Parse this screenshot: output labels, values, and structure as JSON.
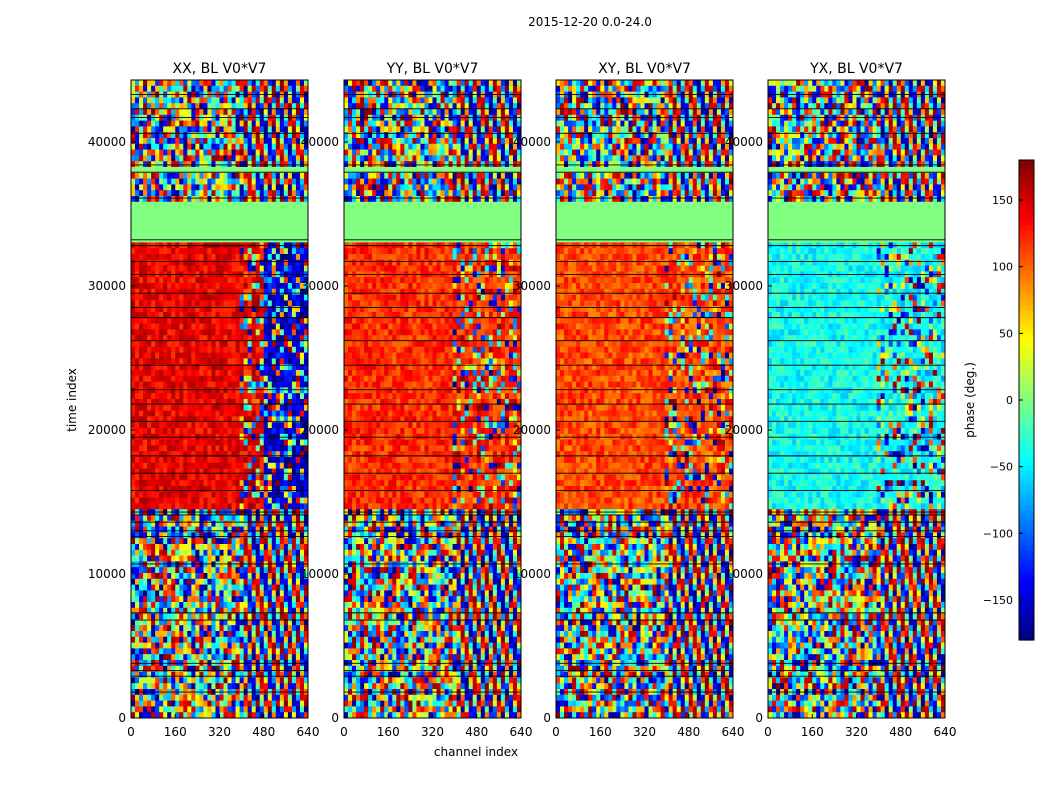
{
  "figure": {
    "suptitle": "2015-12-20 0.0-24.0",
    "xlabel": "channel index",
    "ylabel": "time index"
  },
  "chart_data": {
    "type": "heatmap",
    "colormap": "jet",
    "x_range": [
      0,
      640
    ],
    "y_range": [
      0,
      44300
    ],
    "x_ticks": [
      0,
      160,
      320,
      480,
      640
    ],
    "y_ticks": [
      0,
      10000,
      20000,
      30000,
      40000
    ],
    "x_tick_labels": [
      "0",
      "160",
      "320",
      "480",
      "640"
    ],
    "y_tick_labels": [
      "0",
      "10000",
      "20000",
      "30000",
      "40000"
    ],
    "panels": [
      {
        "title": "XX, BL V0*V7",
        "band_phase": 140,
        "band2_phase": -150
      },
      {
        "title": "YY, BL V0*V7",
        "band_phase": 120,
        "band2_phase": 120
      },
      {
        "title": "XY, BL V0*V7",
        "band_phase": 110,
        "band2_phase": 95
      },
      {
        "title": "YX, BL V0*V7",
        "band_phase": -40,
        "band2_phase": -35
      }
    ],
    "flagged_value": 0,
    "flagged_time_ranges": [
      [
        33200,
        35800
      ],
      [
        37800,
        38200
      ]
    ],
    "coherent_time_range": [
      14500,
      33000
    ],
    "coherent_channel_split": 400,
    "colorbar": {
      "label": "phase (deg.)",
      "range": [
        -180,
        180
      ],
      "ticks": [
        150,
        100,
        50,
        0,
        -50,
        -100,
        -150
      ],
      "tick_labels": [
        "150",
        "100",
        "50",
        "0",
        "−50",
        "−100",
        "−150"
      ]
    }
  }
}
